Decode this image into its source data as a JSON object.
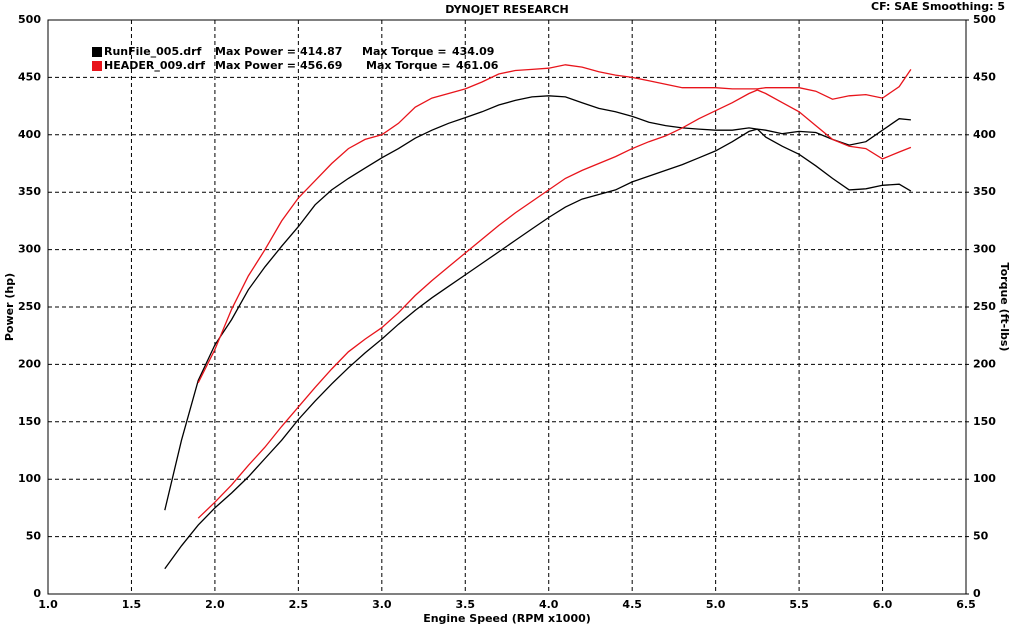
{
  "chart_data": {
    "type": "line",
    "title": "DYNOJET RESEARCH",
    "info": "CF: SAE  Smoothing: 5",
    "x_label": "Engine Speed (RPM x1000)",
    "y_label": "Power (hp)",
    "y2_label": "Torque (ft-lbs)",
    "max_power_label": "Max Power =",
    "max_torque_label": "Max Torque =",
    "xlim": [
      1,
      6.5
    ],
    "xticks": [
      {
        "value": 1,
        "label": "1.0"
      },
      1.5,
      {
        "value": 2,
        "label": "2.0"
      },
      2.5,
      {
        "value": 3,
        "label": "3.0"
      },
      3.5,
      {
        "value": 4,
        "label": "4.0"
      },
      4.5,
      {
        "value": 5,
        "label": "5.0"
      },
      5.5,
      {
        "value": 6,
        "label": "6.0"
      },
      6.5
    ],
    "ylim": [
      0,
      500
    ],
    "yticks": [
      0,
      50,
      100,
      150,
      200,
      250,
      300,
      350,
      400,
      450,
      500
    ],
    "y2lim": [
      0,
      500
    ],
    "y2ticks": [
      0,
      50,
      100,
      150,
      200,
      250,
      300,
      350,
      400,
      450,
      500
    ],
    "grid": true,
    "series": [
      {
        "name": "RunFile_005.drf",
        "color": "#000000",
        "max_power": 414.87,
        "max_torque": 434.09,
        "x": [
          1.7,
          1.8,
          1.9,
          2.0,
          2.1,
          2.2,
          2.3,
          2.4,
          2.5,
          2.6,
          2.7,
          2.8,
          2.9,
          3.0,
          3.1,
          3.2,
          3.3,
          3.4,
          3.5,
          3.6,
          3.7,
          3.8,
          3.9,
          4.0,
          4.1,
          4.2,
          4.3,
          4.4,
          4.5,
          4.6,
          4.7,
          4.8,
          4.9,
          5.0,
          5.1,
          5.2,
          5.25,
          5.3,
          5.4,
          5.5,
          5.6,
          5.7,
          5.8,
          5.9,
          6.0,
          6.1,
          6.17
        ],
        "values": [
          22,
          42,
          60,
          75,
          88,
          102,
          118,
          134,
          152,
          168,
          183,
          197,
          210,
          222,
          235,
          247,
          258,
          268,
          278,
          288,
          298,
          308,
          318,
          328,
          337,
          344,
          348,
          352,
          359,
          364,
          369,
          374,
          380,
          386,
          394,
          403,
          405,
          398,
          390,
          383,
          373,
          362,
          352,
          353,
          356,
          357,
          351
        ],
        "torque": [
          73,
          134,
          186,
          217,
          239,
          265,
          285,
          303,
          320,
          339,
          352,
          362,
          371,
          380,
          388,
          397,
          404,
          410,
          415,
          420,
          426,
          430,
          433,
          434,
          433,
          428,
          423,
          420,
          416,
          411,
          408,
          406,
          405,
          404,
          404,
          406,
          405,
          404,
          401,
          403,
          402,
          396,
          391,
          394,
          404,
          414,
          413
        ]
      },
      {
        "name": "HEADER_009.drf",
        "color": "#e8141b",
        "max_power": 456.69,
        "max_torque": 461.06,
        "x": [
          1.9,
          2.0,
          2.1,
          2.2,
          2.3,
          2.4,
          2.5,
          2.6,
          2.7,
          2.8,
          2.9,
          3.0,
          3.1,
          3.2,
          3.3,
          3.4,
          3.5,
          3.6,
          3.7,
          3.8,
          3.9,
          4.0,
          4.1,
          4.2,
          4.3,
          4.4,
          4.5,
          4.6,
          4.7,
          4.8,
          4.9,
          5.0,
          5.1,
          5.2,
          5.25,
          5.3,
          5.4,
          5.5,
          5.6,
          5.7,
          5.8,
          5.9,
          6.0,
          6.1,
          6.17
        ],
        "values": [
          66,
          80,
          95,
          112,
          128,
          146,
          163,
          180,
          196,
          211,
          222,
          232,
          245,
          260,
          273,
          285,
          297,
          309,
          321,
          332,
          342,
          352,
          362,
          369,
          375,
          381,
          388,
          394,
          399,
          406,
          414,
          421,
          428,
          436,
          439,
          436,
          428,
          420,
          408,
          396,
          390,
          388,
          379,
          385,
          389
        ],
        "torque": [
          184,
          213,
          248,
          277,
          300,
          325,
          345,
          360,
          375,
          388,
          396,
          400,
          410,
          424,
          432,
          436,
          440,
          446,
          453,
          456,
          457,
          458,
          461,
          459,
          455,
          452,
          450,
          447,
          444,
          441,
          441,
          441,
          440,
          440,
          440,
          441,
          441,
          441,
          438,
          431,
          434,
          435,
          432,
          442,
          457
        ]
      }
    ]
  }
}
